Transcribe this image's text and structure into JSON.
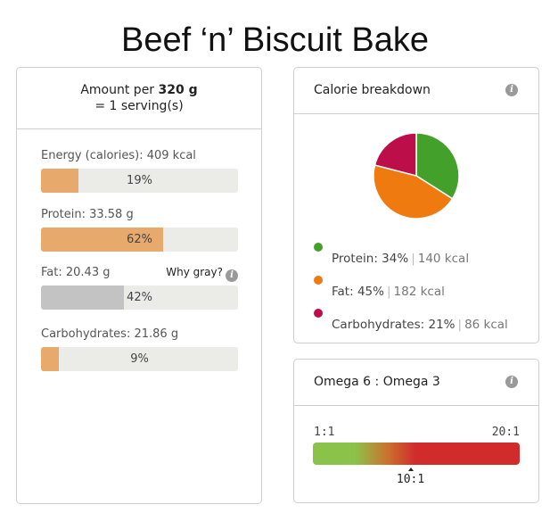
{
  "title": "Beef ‘n’ Biscuit Bake",
  "serving": {
    "prefix": "Amount per",
    "amount": "320 g",
    "line2": "= 1 serving(s)"
  },
  "nutrients": [
    {
      "label": "Energy (calories):",
      "value": "409 kcal",
      "percent": 19,
      "percent_label": "19%",
      "gray": false
    },
    {
      "label": "Protein:",
      "value": "33.58 g",
      "percent": 62,
      "percent_label": "62%",
      "gray": false
    },
    {
      "label": "Fat:",
      "value": "20.43 g",
      "percent": 42,
      "percent_label": "42%",
      "gray": true
    },
    {
      "label": "Carbohydrates:",
      "value": "21.86 g",
      "percent": 9,
      "percent_label": "9%",
      "gray": false
    }
  ],
  "why_gray": "Why gray?",
  "calorie_breakdown": {
    "title": "Calorie breakdown",
    "items": [
      {
        "name": "Protein:",
        "pct": "34%",
        "kcal": "140 kcal",
        "value": 34,
        "color": "#43a02b"
      },
      {
        "name": "Fat:",
        "pct": "45%",
        "kcal": "182 kcal",
        "value": 45,
        "color": "#ef7a10"
      },
      {
        "name": "Carbohydrates:",
        "pct": "21%",
        "kcal": "86 kcal",
        "value": 21,
        "color": "#bc0e48"
      }
    ]
  },
  "omega": {
    "title": "Omega 6 : Omega 3",
    "min_label": "1:1",
    "max_label": "20:1",
    "value_label": "10:1",
    "value": 10,
    "min": 1,
    "max": 20
  },
  "icons": {
    "info": "info-icon"
  }
}
